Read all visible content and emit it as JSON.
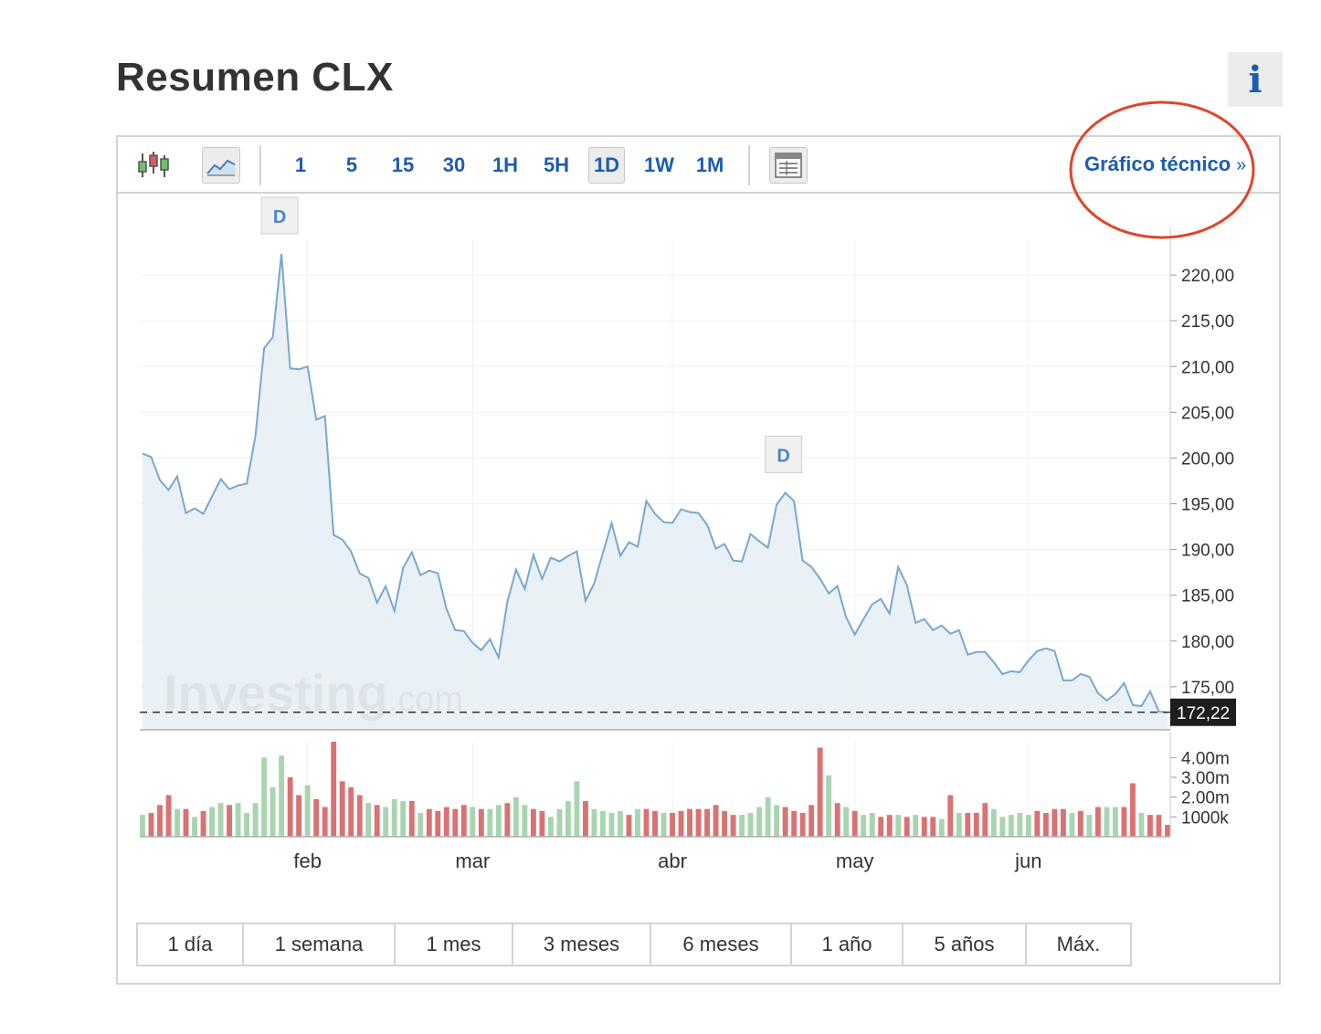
{
  "page": {
    "title": "Resumen CLX",
    "info_label": "i"
  },
  "toolbar": {
    "intervals": [
      {
        "label": "1",
        "active": false
      },
      {
        "label": "5",
        "active": false
      },
      {
        "label": "15",
        "active": false
      },
      {
        "label": "30",
        "active": false
      },
      {
        "label": "1H",
        "active": false
      },
      {
        "label": "5H",
        "active": false
      },
      {
        "label": "1D",
        "active": true
      },
      {
        "label": "1W",
        "active": false
      },
      {
        "label": "1M",
        "active": false
      }
    ],
    "technical_link": "Gráfico técnico",
    "technical_chevron": "»",
    "icons": [
      "candlestick-icon",
      "area-chart-icon",
      "table-view-icon"
    ]
  },
  "annotation": {
    "type": "circle",
    "color": "#e0442a",
    "target": "technical_link"
  },
  "range_buttons": [
    "1 día",
    "1 semana",
    "1 mes",
    "3 meses",
    "6 meses",
    "1 año",
    "5 años",
    "Máx."
  ],
  "watermark": {
    "brand": "Investing",
    "suffix": ".com"
  },
  "colors": {
    "line": "#7aa7cf",
    "area_fill": "#e6eef5",
    "volume_up": "#a8d5b0",
    "volume_down": "#d97272",
    "link": "#1d5cb3",
    "annotation": "#e0442a"
  },
  "chart_data": {
    "type": "area",
    "ylim": [
      170.3,
      223.9
    ],
    "yticks": [
      "220,00",
      "215,00",
      "210,00",
      "205,00",
      "200,00",
      "195,00",
      "190,00",
      "185,00",
      "180,00",
      "175,00"
    ],
    "ytick_values": [
      220,
      215,
      210,
      205,
      200,
      195,
      190,
      185,
      180,
      175
    ],
    "last_price_label": "172,22",
    "last_price": 172.22,
    "x_month_labels": [
      {
        "label": "feb",
        "index": 19
      },
      {
        "label": "mar",
        "index": 38
      },
      {
        "label": "abr",
        "index": 61
      },
      {
        "label": "may",
        "index": 82
      },
      {
        "label": "jun",
        "index": 102
      }
    ],
    "dividend_markers": [
      {
        "label": "D",
        "index": 16
      },
      {
        "label": "D",
        "index": 74
      }
    ],
    "series": [
      {
        "values": [
          200.5,
          200.1,
          197.6,
          196.5,
          198.0,
          194.0,
          194.5,
          193.9,
          195.8,
          197.7,
          196.6,
          197.0,
          197.2,
          202.4,
          212.0,
          213.2,
          222.3,
          209.8,
          209.7,
          210.0,
          204.2,
          204.6,
          191.6,
          191.1,
          189.8,
          187.4,
          186.9,
          184.2,
          186.0,
          183.3,
          188.0,
          189.7,
          187.2,
          187.7,
          187.4,
          183.5,
          181.2,
          181.1,
          179.8,
          179.0,
          180.2,
          178.2,
          184.3,
          187.8,
          185.7,
          189.4,
          186.8,
          189.1,
          188.7,
          189.3,
          189.8,
          184.4,
          186.3,
          189.6,
          192.9,
          189.3,
          190.8,
          190.3,
          195.3,
          193.9,
          193.0,
          192.9,
          194.4,
          194.1,
          194.0,
          192.7,
          190.1,
          190.6,
          188.8,
          188.7,
          191.7,
          190.9,
          190.2,
          194.9,
          196.2,
          195.3,
          188.8,
          188.1,
          186.8,
          185.2,
          186.0,
          182.6,
          180.7,
          182.4,
          184.0,
          184.6,
          183.0,
          188.1,
          186.1,
          182.0,
          182.4,
          181.2,
          181.7,
          180.8,
          181.2,
          178.5,
          178.8,
          178.8,
          177.7,
          176.4,
          176.7,
          176.6,
          177.9,
          178.9,
          179.2,
          178.9,
          175.7,
          175.7,
          176.4,
          176.1,
          174.3,
          173.5,
          174.2,
          175.4,
          173.0,
          172.9,
          174.5,
          172.3,
          172.2
        ]
      }
    ],
    "volume": {
      "ylim": [
        0,
        4.8
      ],
      "yticks": [
        "4.00m",
        "3.00m",
        "2.00m",
        "1000k"
      ],
      "ytick_values": [
        4.0,
        3.0,
        2.0,
        1.0
      ],
      "values": [
        1.1,
        1.2,
        1.6,
        2.1,
        1.4,
        1.4,
        1.0,
        1.3,
        1.5,
        1.7,
        1.6,
        1.7,
        1.2,
        1.7,
        4.0,
        2.5,
        4.1,
        3.0,
        2.1,
        2.6,
        1.9,
        1.5,
        4.9,
        2.8,
        2.5,
        2.1,
        1.7,
        1.6,
        1.5,
        1.9,
        1.8,
        1.8,
        1.2,
        1.4,
        1.3,
        1.5,
        1.4,
        1.6,
        1.5,
        1.4,
        1.4,
        1.6,
        1.7,
        2.0,
        1.6,
        1.4,
        1.3,
        1.0,
        1.4,
        1.8,
        2.8,
        1.8,
        1.4,
        1.3,
        1.2,
        1.3,
        1.1,
        1.4,
        1.4,
        1.3,
        1.2,
        1.2,
        1.3,
        1.4,
        1.4,
        1.4,
        1.6,
        1.3,
        1.1,
        1.1,
        1.2,
        1.5,
        2.0,
        1.6,
        1.5,
        1.3,
        1.2,
        1.6,
        4.5,
        3.1,
        1.7,
        1.5,
        1.3,
        1.1,
        1.2,
        1.0,
        1.1,
        1.1,
        1.0,
        1.1,
        1.0,
        1.0,
        0.9,
        2.1,
        1.2,
        1.2,
        1.2,
        1.7,
        1.4,
        1.0,
        1.1,
        1.2,
        1.1,
        1.3,
        1.2,
        1.4,
        1.4,
        1.2,
        1.3,
        1.1,
        1.5,
        1.5,
        1.5,
        1.5,
        2.7,
        1.2,
        1.1,
        1.1,
        0.6
      ],
      "up": [
        true,
        false,
        false,
        false,
        true,
        false,
        true,
        false,
        true,
        true,
        false,
        true,
        true,
        true,
        true,
        true,
        true,
        false,
        false,
        true,
        false,
        false,
        false,
        false,
        false,
        false,
        true,
        false,
        true,
        true,
        true,
        false,
        true,
        false,
        false,
        false,
        false,
        false,
        true,
        false,
        true,
        true,
        false,
        true,
        true,
        false,
        false,
        true,
        true,
        true,
        true,
        false,
        true,
        true,
        true,
        true,
        false,
        true,
        false,
        false,
        true,
        false,
        false,
        false,
        false,
        false,
        false,
        false,
        false,
        true,
        true,
        true,
        true,
        true,
        false,
        false,
        false,
        false,
        false,
        true,
        false,
        true,
        false,
        true,
        true,
        false,
        false,
        true,
        false,
        true,
        false,
        false,
        true,
        false,
        true,
        false,
        false,
        false,
        true,
        true,
        true,
        true,
        true,
        false,
        false,
        false,
        false,
        true,
        false,
        true,
        false,
        true,
        true,
        false,
        false,
        true,
        false,
        false,
        false
      ]
    }
  }
}
